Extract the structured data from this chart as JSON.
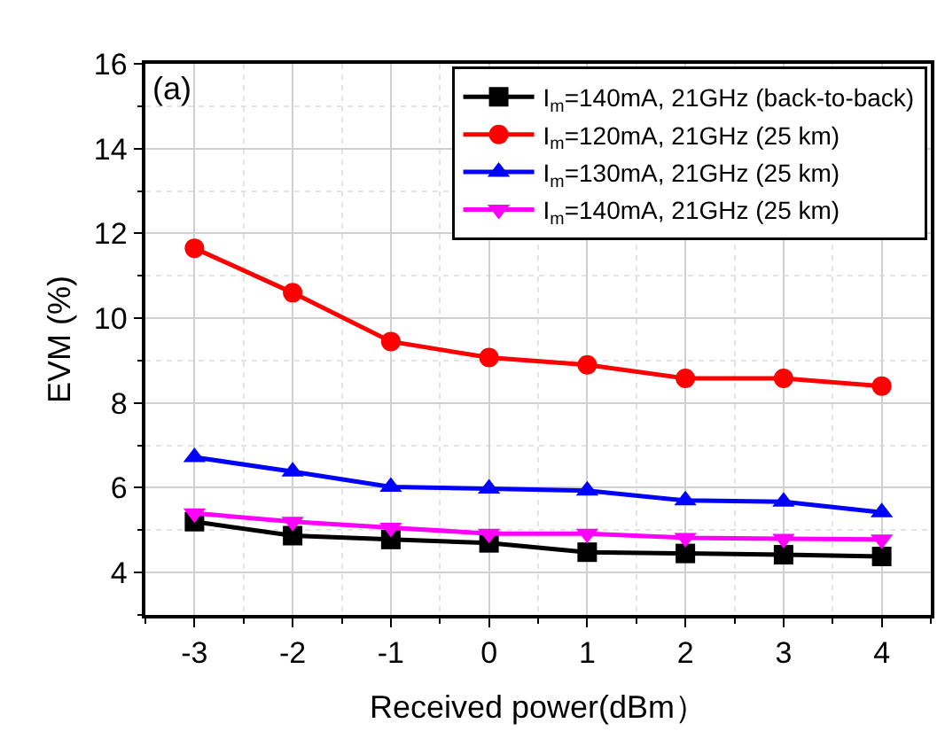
{
  "chart_data": {
    "type": "line",
    "xlabel": "Received power(dBm）",
    "ylabel": "EVM (%)",
    "annotations": [
      "(a)"
    ],
    "x": [
      -3,
      -2,
      -1,
      0,
      1,
      2,
      3,
      4
    ],
    "series": [
      {
        "name": "I$_{m}$=140mA, 21GHz (back-to-back)",
        "color": "#000000",
        "marker": "square",
        "values": [
          5.2,
          4.87,
          4.78,
          4.7,
          4.48,
          4.45,
          4.42,
          4.38
        ]
      },
      {
        "name": "I$_{m}$=120mA, 21GHz (25 km)",
        "color": "#ff0000",
        "marker": "circle",
        "values": [
          11.65,
          10.6,
          9.45,
          9.07,
          8.9,
          8.58,
          8.58,
          8.4
        ]
      },
      {
        "name": "I$_{m}$=130mA, 21GHz (25 km)",
        "color": "#0000ff",
        "marker": "triangle",
        "values": [
          6.72,
          6.38,
          6.02,
          5.98,
          5.93,
          5.7,
          5.67,
          5.42
        ]
      },
      {
        "name": "I$_{m}$=140mA, 21GHz (25 km)",
        "color": "#ff00ff",
        "marker": "triangle-down",
        "values": [
          5.4,
          5.2,
          5.06,
          4.92,
          4.92,
          4.82,
          4.8,
          4.78
        ]
      }
    ],
    "xlim": [
      -3.5,
      4.5
    ],
    "xticks": [
      -3,
      -2,
      -1,
      0,
      1,
      2,
      3,
      4
    ],
    "ylim": [
      3,
      16
    ],
    "yticks": [
      4,
      6,
      8,
      10,
      12,
      14,
      16
    ],
    "grid": true,
    "legend": "top right",
    "line_style": "solid"
  }
}
